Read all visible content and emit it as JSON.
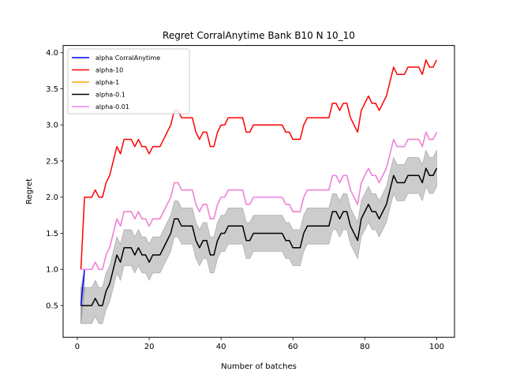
{
  "chart_data": {
    "type": "line",
    "title": "Regret CorralAnytime Bank B10 N 10_10",
    "xlabel": "Number of batches",
    "ylabel": "Regret",
    "xlim": [
      -3.95,
      104.95
    ],
    "ylim": [
      0.06,
      4.1
    ],
    "xticks": [
      0,
      20,
      40,
      60,
      80,
      100
    ],
    "xtick_labels": [
      "0",
      "20",
      "40",
      "60",
      "80",
      "100"
    ],
    "yticks": [
      0.5,
      1.0,
      1.5,
      2.0,
      2.5,
      3.0,
      3.5,
      4.0
    ],
    "ytick_labels": [
      "0.5",
      "1.0",
      "1.5",
      "2.0",
      "2.5",
      "3.0",
      "3.5",
      "4.0"
    ],
    "grid": false,
    "legend_position": "top-left",
    "series": [
      {
        "name": "alpha CorralAnytime",
        "color": "#0000ff",
        "x": [
          1,
          2
        ],
        "y": [
          0.5,
          1.0
        ],
        "band_lower": [
          0.25,
          0.7
        ],
        "band_upper": [
          0.75,
          1.0
        ]
      },
      {
        "name": "alpha-10",
        "color": "#ff0000",
        "x": [
          1,
          2,
          3,
          4,
          5,
          6,
          7,
          8,
          9,
          10,
          11,
          12,
          13,
          14,
          15,
          16,
          17,
          18,
          19,
          20,
          21,
          22,
          23,
          24,
          25,
          26,
          27,
          28,
          29,
          30,
          31,
          32,
          33,
          34,
          35,
          36,
          37,
          38,
          39,
          40,
          41,
          42,
          43,
          44,
          45,
          46,
          47,
          48,
          49,
          50,
          51,
          52,
          53,
          54,
          55,
          56,
          57,
          58,
          59,
          60,
          61,
          62,
          63,
          64,
          65,
          66,
          67,
          68,
          69,
          70,
          71,
          72,
          73,
          74,
          75,
          76,
          77,
          78,
          79,
          80,
          81,
          82,
          83,
          84,
          85,
          86,
          87,
          88,
          89,
          90,
          91,
          92,
          93,
          94,
          95,
          96,
          97,
          98,
          99,
          100
        ],
        "y": [
          1.0,
          2.0,
          2.0,
          2.0,
          2.1,
          2.0,
          2.0,
          2.2,
          2.3,
          2.5,
          2.7,
          2.6,
          2.8,
          2.8,
          2.8,
          2.7,
          2.8,
          2.7,
          2.7,
          2.6,
          2.7,
          2.7,
          2.7,
          2.8,
          2.9,
          3.0,
          3.2,
          3.2,
          3.1,
          3.1,
          3.1,
          3.1,
          2.9,
          2.8,
          2.9,
          2.9,
          2.7,
          2.7,
          2.9,
          3.0,
          3.0,
          3.1,
          3.1,
          3.1,
          3.1,
          3.1,
          2.9,
          2.9,
          3.0,
          3.0,
          3.0,
          3.0,
          3.0,
          3.0,
          3.0,
          3.0,
          3.0,
          2.9,
          2.9,
          2.8,
          2.8,
          2.8,
          3.0,
          3.1,
          3.1,
          3.1,
          3.1,
          3.1,
          3.1,
          3.1,
          3.3,
          3.3,
          3.2,
          3.3,
          3.3,
          3.1,
          3.0,
          2.9,
          3.2,
          3.3,
          3.4,
          3.3,
          3.3,
          3.2,
          3.3,
          3.4,
          3.6,
          3.8,
          3.7,
          3.7,
          3.7,
          3.8,
          3.8,
          3.8,
          3.8,
          3.7,
          3.9,
          3.8,
          3.8,
          3.9
        ]
      },
      {
        "name": "alpha-1",
        "color": "#ffa500",
        "x": [
          1,
          2,
          3,
          4,
          5,
          6,
          7,
          8,
          9,
          10,
          11,
          12,
          13,
          14,
          15,
          16,
          17,
          18,
          19,
          20,
          21,
          22,
          23,
          24,
          25,
          26,
          27,
          28,
          29,
          30,
          31,
          32,
          33,
          34,
          35,
          36,
          37,
          38,
          39,
          40,
          41,
          42,
          43,
          44,
          45,
          46,
          47,
          48,
          49,
          50,
          51,
          52,
          53,
          54,
          55,
          56,
          57,
          58,
          59,
          60,
          61,
          62,
          63,
          64,
          65,
          66,
          67,
          68,
          69,
          70,
          71,
          72,
          73,
          74,
          75,
          76,
          77,
          78,
          79,
          80,
          81,
          82,
          83,
          84,
          85,
          86,
          87,
          88,
          89,
          90,
          91,
          92,
          93,
          94,
          95,
          96,
          97,
          98,
          99,
          100
        ],
        "y": [
          1.0,
          1.0,
          1.0,
          1.0,
          1.1,
          1.0,
          1.0,
          1.2,
          1.3,
          1.5,
          1.7,
          1.6,
          1.8,
          1.8,
          1.8,
          1.7,
          1.8,
          1.7,
          1.7,
          1.6,
          1.7,
          1.7,
          1.7,
          1.8,
          1.9,
          2.0,
          2.2,
          2.2,
          2.1,
          2.1,
          2.1,
          2.1,
          1.9,
          1.8,
          1.9,
          1.9,
          1.7,
          1.7,
          1.9,
          2.0,
          2.0,
          2.1,
          2.1,
          2.1,
          2.1,
          2.1,
          1.9,
          1.9,
          2.0,
          2.0,
          2.0,
          2.0,
          2.0,
          2.0,
          2.0,
          2.0,
          2.0,
          1.9,
          1.9,
          1.8,
          1.8,
          1.8,
          2.0,
          2.1,
          2.1,
          2.1,
          2.1,
          2.1,
          2.1,
          2.1,
          2.3,
          2.3,
          2.2,
          2.3,
          2.3,
          2.1,
          2.0,
          1.9,
          2.2,
          2.3,
          2.4,
          2.3,
          2.3,
          2.2,
          2.3,
          2.4,
          2.6,
          2.8,
          2.7,
          2.7,
          2.7,
          2.8,
          2.8,
          2.8,
          2.8,
          2.7,
          2.9,
          2.8,
          2.8,
          2.9
        ]
      },
      {
        "name": "alpha-0.1",
        "color": "#000000",
        "x": [
          1,
          2,
          3,
          4,
          5,
          6,
          7,
          8,
          9,
          10,
          11,
          12,
          13,
          14,
          15,
          16,
          17,
          18,
          19,
          20,
          21,
          22,
          23,
          24,
          25,
          26,
          27,
          28,
          29,
          30,
          31,
          32,
          33,
          34,
          35,
          36,
          37,
          38,
          39,
          40,
          41,
          42,
          43,
          44,
          45,
          46,
          47,
          48,
          49,
          50,
          51,
          52,
          53,
          54,
          55,
          56,
          57,
          58,
          59,
          60,
          61,
          62,
          63,
          64,
          65,
          66,
          67,
          68,
          69,
          70,
          71,
          72,
          73,
          74,
          75,
          76,
          77,
          78,
          79,
          80,
          81,
          82,
          83,
          84,
          85,
          86,
          87,
          88,
          89,
          90,
          91,
          92,
          93,
          94,
          95,
          96,
          97,
          98,
          99,
          100
        ],
        "y": [
          0.5,
          0.5,
          0.5,
          0.5,
          0.6,
          0.5,
          0.5,
          0.7,
          0.8,
          1.0,
          1.2,
          1.1,
          1.3,
          1.3,
          1.3,
          1.2,
          1.3,
          1.2,
          1.2,
          1.1,
          1.2,
          1.2,
          1.2,
          1.3,
          1.4,
          1.5,
          1.7,
          1.7,
          1.6,
          1.6,
          1.6,
          1.6,
          1.4,
          1.3,
          1.4,
          1.4,
          1.2,
          1.2,
          1.4,
          1.5,
          1.5,
          1.6,
          1.6,
          1.6,
          1.6,
          1.6,
          1.4,
          1.4,
          1.5,
          1.5,
          1.5,
          1.5,
          1.5,
          1.5,
          1.5,
          1.5,
          1.5,
          1.4,
          1.4,
          1.3,
          1.3,
          1.3,
          1.5,
          1.6,
          1.6,
          1.6,
          1.6,
          1.6,
          1.6,
          1.6,
          1.8,
          1.8,
          1.7,
          1.8,
          1.8,
          1.6,
          1.5,
          1.4,
          1.7,
          1.8,
          1.9,
          1.8,
          1.8,
          1.7,
          1.8,
          1.9,
          2.1,
          2.3,
          2.2,
          2.2,
          2.2,
          2.3,
          2.3,
          2.3,
          2.3,
          2.2,
          2.4,
          2.3,
          2.3,
          2.4
        ],
        "band_lower": [
          0.25,
          0.25,
          0.25,
          0.25,
          0.35,
          0.25,
          0.25,
          0.45,
          0.55,
          0.75,
          0.95,
          0.85,
          1.05,
          1.05,
          1.05,
          0.95,
          1.05,
          0.95,
          0.95,
          0.85,
          0.95,
          0.95,
          0.95,
          1.05,
          1.15,
          1.25,
          1.45,
          1.45,
          1.35,
          1.35,
          1.35,
          1.35,
          1.15,
          1.05,
          1.15,
          1.15,
          0.95,
          0.95,
          1.15,
          1.25,
          1.25,
          1.35,
          1.35,
          1.35,
          1.35,
          1.35,
          1.15,
          1.15,
          1.25,
          1.25,
          1.25,
          1.25,
          1.25,
          1.25,
          1.25,
          1.25,
          1.25,
          1.15,
          1.15,
          1.05,
          1.05,
          1.05,
          1.25,
          1.35,
          1.35,
          1.35,
          1.35,
          1.35,
          1.35,
          1.35,
          1.55,
          1.55,
          1.45,
          1.55,
          1.55,
          1.35,
          1.25,
          1.15,
          1.45,
          1.55,
          1.65,
          1.55,
          1.55,
          1.45,
          1.55,
          1.65,
          1.85,
          2.05,
          1.95,
          1.95,
          1.95,
          2.05,
          2.05,
          2.05,
          2.05,
          1.95,
          2.15,
          2.05,
          2.05,
          2.15
        ],
        "band_upper": [
          0.75,
          0.75,
          0.75,
          0.75,
          0.85,
          0.75,
          0.75,
          0.95,
          1.05,
          1.25,
          1.45,
          1.35,
          1.55,
          1.55,
          1.55,
          1.45,
          1.55,
          1.45,
          1.45,
          1.35,
          1.45,
          1.45,
          1.45,
          1.55,
          1.65,
          1.75,
          1.95,
          1.95,
          1.85,
          1.85,
          1.85,
          1.85,
          1.65,
          1.55,
          1.65,
          1.65,
          1.45,
          1.45,
          1.65,
          1.75,
          1.75,
          1.85,
          1.85,
          1.85,
          1.85,
          1.85,
          1.65,
          1.65,
          1.75,
          1.75,
          1.75,
          1.75,
          1.75,
          1.75,
          1.75,
          1.75,
          1.75,
          1.65,
          1.65,
          1.55,
          1.55,
          1.55,
          1.75,
          1.85,
          1.85,
          1.85,
          1.85,
          1.85,
          1.85,
          1.85,
          2.05,
          2.05,
          1.95,
          2.05,
          2.05,
          1.85,
          1.75,
          1.65,
          1.95,
          2.05,
          2.15,
          2.05,
          2.05,
          1.95,
          2.05,
          2.15,
          2.35,
          2.55,
          2.45,
          2.45,
          2.45,
          2.55,
          2.55,
          2.55,
          2.55,
          2.45,
          2.65,
          2.55,
          2.55,
          2.65
        ]
      },
      {
        "name": "alpha-0.01",
        "color": "#ee82ee",
        "x": [
          1,
          2,
          3,
          4,
          5,
          6,
          7,
          8,
          9,
          10,
          11,
          12,
          13,
          14,
          15,
          16,
          17,
          18,
          19,
          20,
          21,
          22,
          23,
          24,
          25,
          26,
          27,
          28,
          29,
          30,
          31,
          32,
          33,
          34,
          35,
          36,
          37,
          38,
          39,
          40,
          41,
          42,
          43,
          44,
          45,
          46,
          47,
          48,
          49,
          50,
          51,
          52,
          53,
          54,
          55,
          56,
          57,
          58,
          59,
          60,
          61,
          62,
          63,
          64,
          65,
          66,
          67,
          68,
          69,
          70,
          71,
          72,
          73,
          74,
          75,
          76,
          77,
          78,
          79,
          80,
          81,
          82,
          83,
          84,
          85,
          86,
          87,
          88,
          89,
          90,
          91,
          92,
          93,
          94,
          95,
          96,
          97,
          98,
          99,
          100
        ],
        "y": [
          1.0,
          1.0,
          1.0,
          1.0,
          1.1,
          1.0,
          1.0,
          1.2,
          1.3,
          1.5,
          1.7,
          1.6,
          1.8,
          1.8,
          1.8,
          1.7,
          1.8,
          1.7,
          1.7,
          1.6,
          1.7,
          1.7,
          1.7,
          1.8,
          1.9,
          2.0,
          2.2,
          2.2,
          2.1,
          2.1,
          2.1,
          2.1,
          1.9,
          1.8,
          1.9,
          1.9,
          1.7,
          1.7,
          1.9,
          2.0,
          2.0,
          2.1,
          2.1,
          2.1,
          2.1,
          2.1,
          1.9,
          1.9,
          2.0,
          2.0,
          2.0,
          2.0,
          2.0,
          2.0,
          2.0,
          2.0,
          2.0,
          1.9,
          1.9,
          1.8,
          1.8,
          1.8,
          2.0,
          2.1,
          2.1,
          2.1,
          2.1,
          2.1,
          2.1,
          2.1,
          2.3,
          2.3,
          2.2,
          2.3,
          2.3,
          2.1,
          2.0,
          1.9,
          2.2,
          2.3,
          2.4,
          2.3,
          2.3,
          2.2,
          2.3,
          2.4,
          2.6,
          2.8,
          2.7,
          2.7,
          2.7,
          2.8,
          2.8,
          2.8,
          2.8,
          2.7,
          2.9,
          2.8,
          2.8,
          2.9
        ]
      }
    ]
  }
}
